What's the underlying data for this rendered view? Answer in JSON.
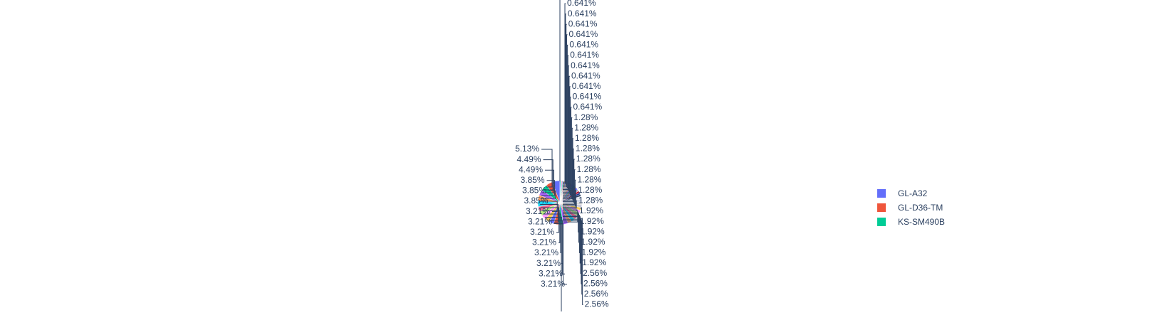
{
  "chart_data": {
    "type": "pie",
    "legend": {
      "placement": "right"
    },
    "visible_legend_entries": [
      "GL-A32",
      "GL-D36-TM",
      "KS-SM490B"
    ],
    "slice_labels": [
      "5.13%",
      "4.49%",
      "4.49%",
      "3.85%",
      "3.85%",
      "3.85%",
      "3.21%",
      "3.21%",
      "3.21%",
      "3.21%",
      "3.21%",
      "3.21%",
      "3.21%",
      "3.21%",
      "2.56%",
      "2.56%",
      "2.56%",
      "2.56%",
      "1.92%",
      "1.92%",
      "1.92%",
      "1.92%",
      "1.92%",
      "1.92%",
      "1.28%",
      "1.28%",
      "1.28%",
      "1.28%",
      "1.28%",
      "1.28%",
      "1.28%",
      "1.28%",
      "1.28%",
      "0.641%",
      "0.641%",
      "0.641%",
      "0.641%",
      "0.641%",
      "0.641%",
      "0.641%",
      "0.641%",
      "0.641%",
      "0.641%",
      "0.641%"
    ],
    "values": [
      5.13,
      4.49,
      4.49,
      3.85,
      3.85,
      3.85,
      3.21,
      3.21,
      3.21,
      3.21,
      3.21,
      3.21,
      3.21,
      3.21,
      2.56,
      2.56,
      2.56,
      2.56,
      1.92,
      1.92,
      1.92,
      1.92,
      1.92,
      1.92,
      1.28,
      1.28,
      1.28,
      1.28,
      1.28,
      1.28,
      1.28,
      1.28,
      1.28,
      0.641,
      0.641,
      0.641,
      0.641,
      0.641,
      0.641,
      0.641,
      0.641,
      0.641,
      0.641,
      0.641
    ],
    "colors": [
      "#636efa",
      "#EF553B",
      "#00cc96",
      "#ab63fa",
      "#FFA15A",
      "#19d3f3",
      "#FF6692",
      "#B6E880",
      "#FF97FF",
      "#FECB52",
      "#636efa",
      "#EF553B",
      "#00cc96",
      "#ab63fa",
      "#FFA15A",
      "#19d3f3",
      "#FF6692",
      "#B6E880",
      "#FF97FF",
      "#FECB52",
      "#c6c8d9",
      "#d4d4d4",
      "#cfd6e8",
      "#e1e5ec",
      "#2a3f5f",
      "#1f3a93",
      "#c8102e",
      "#aab2c8"
    ],
    "line_color": "#2a3f5f"
  }
}
